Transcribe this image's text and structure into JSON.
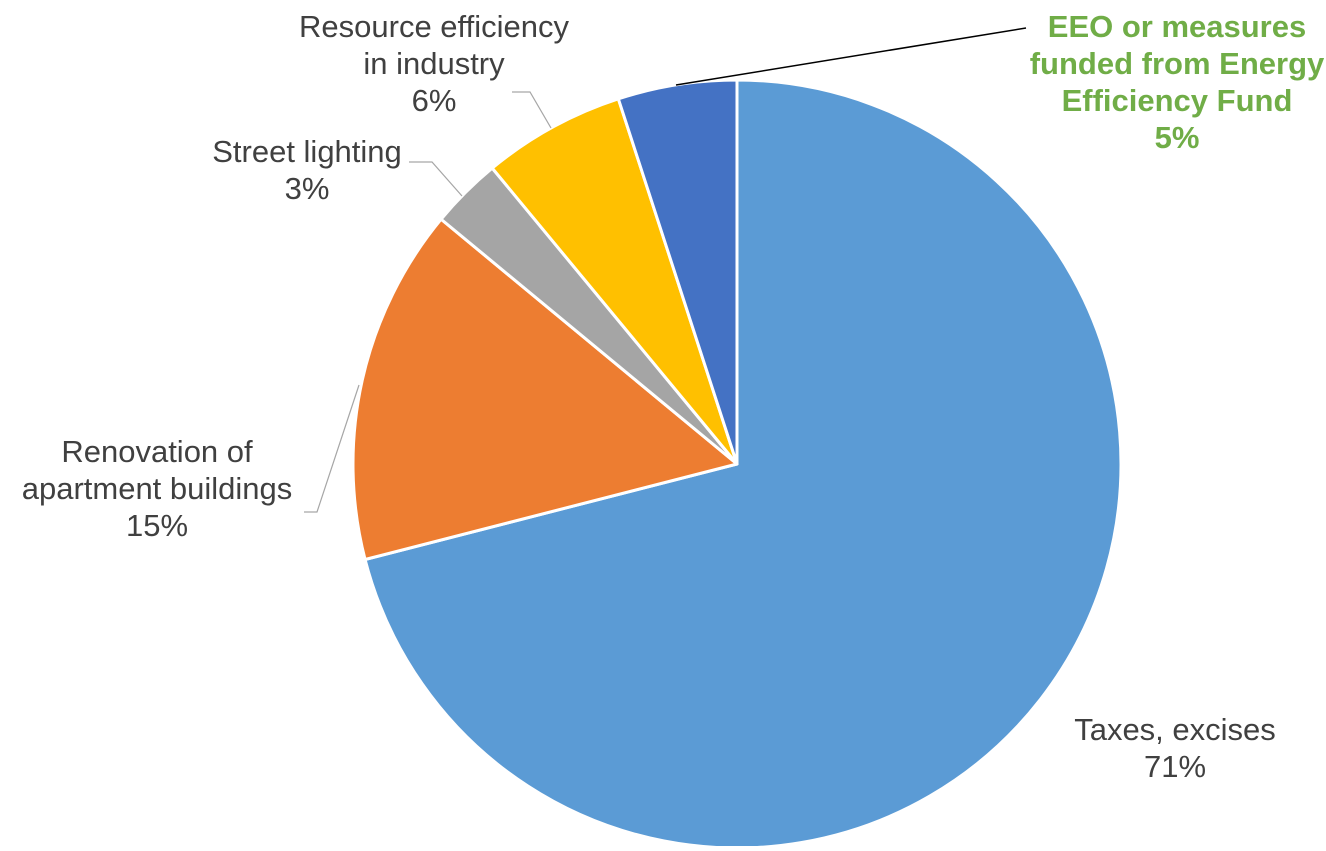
{
  "chart_data": {
    "type": "pie",
    "title": "",
    "unit": "%",
    "start_angle_deg": 0,
    "direction": "clockwise",
    "slices": [
      {
        "label_lines": [
          "Taxes, excises"
        ],
        "value": 71,
        "value_label": "71%",
        "color": "#5B9BD5",
        "label_color": "#404040",
        "label_bold": false
      },
      {
        "label_lines": [
          "Renovation of",
          "apartment buildings"
        ],
        "value": 15,
        "value_label": "15%",
        "color": "#ED7D31",
        "label_color": "#404040",
        "label_bold": false
      },
      {
        "label_lines": [
          "Street lighting"
        ],
        "value": 3,
        "value_label": "3%",
        "color": "#A5A5A5",
        "label_color": "#404040",
        "label_bold": false
      },
      {
        "label_lines": [
          "Resource efficiency",
          "in industry"
        ],
        "value": 6,
        "value_label": "6%",
        "color": "#FFC000",
        "label_color": "#404040",
        "label_bold": false
      },
      {
        "label_lines": [
          "EEO or measures",
          "funded from Energy",
          "Efficiency Fund"
        ],
        "value": 5,
        "value_label": "5%",
        "color": "#4472C4",
        "label_color": "#70AD47",
        "label_bold": true
      }
    ],
    "legend": "none"
  }
}
